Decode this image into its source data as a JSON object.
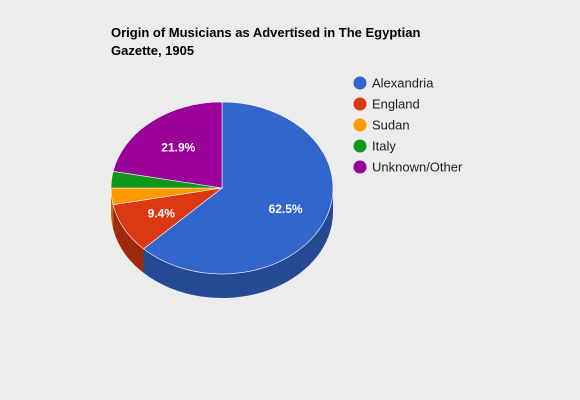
{
  "chart_data": {
    "type": "pie",
    "title": "Origin of Musicians as Advertised in The Egyptian Gazette, 1905",
    "three_d": true,
    "legend_position": "right",
    "slices": [
      {
        "label": "Alexandria",
        "value": 62.5,
        "display": "62.5%",
        "color": "#3366cc"
      },
      {
        "label": "England",
        "value": 9.4,
        "display": "9.4%",
        "color": "#dc3912"
      },
      {
        "label": "Sudan",
        "value": 3.1,
        "display": "",
        "color": "#ff9900"
      },
      {
        "label": "Italy",
        "value": 3.1,
        "display": "",
        "color": "#109618"
      },
      {
        "label": "Unknown/Other",
        "value": 21.9,
        "display": "21.9%",
        "color": "#990099"
      }
    ]
  }
}
